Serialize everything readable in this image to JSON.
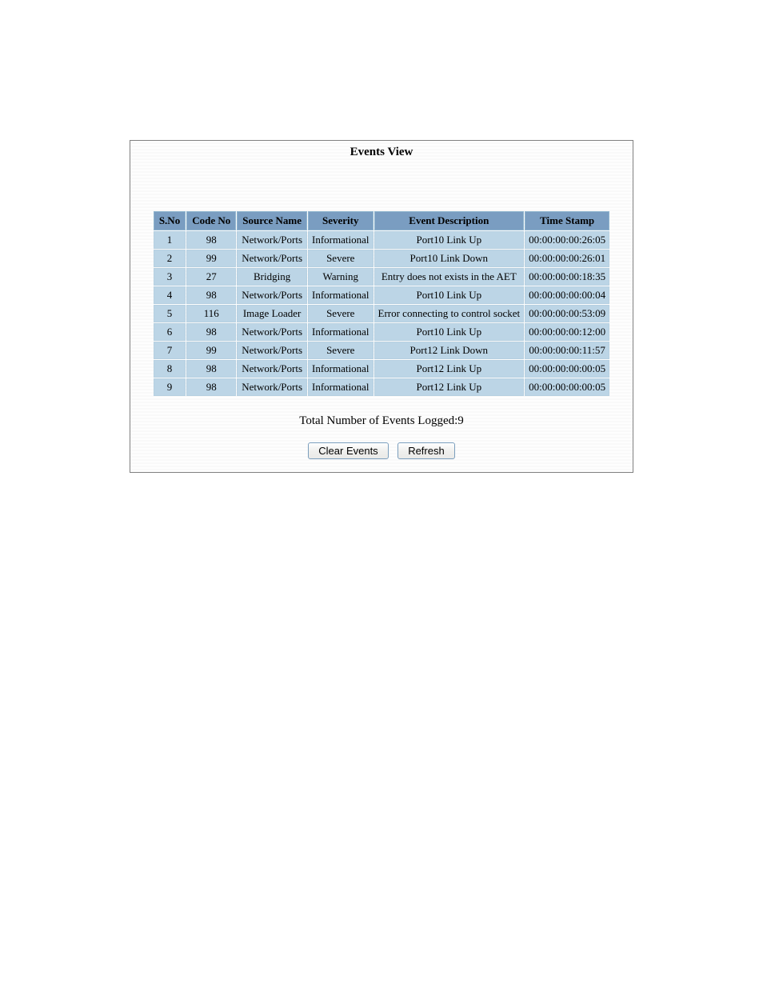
{
  "colors": {
    "header_bg": "#7a9dc1",
    "row_bg": "#bcd5e6",
    "panel_border": "#808080"
  },
  "title": "Events View",
  "columns": [
    "S.No",
    "Code No",
    "Source Name",
    "Severity",
    "Event Description",
    "Time Stamp"
  ],
  "rows": [
    {
      "sno": "1",
      "code": "98",
      "source": "Network/Ports",
      "severity": "Informational",
      "desc": "Port10 Link Up",
      "ts": "00:00:00:00:26:05"
    },
    {
      "sno": "2",
      "code": "99",
      "source": "Network/Ports",
      "severity": "Severe",
      "desc": "Port10 Link Down",
      "ts": "00:00:00:00:26:01"
    },
    {
      "sno": "3",
      "code": "27",
      "source": "Bridging",
      "severity": "Warning",
      "desc": "Entry does not exists in the AET",
      "ts": "00:00:00:00:18:35"
    },
    {
      "sno": "4",
      "code": "98",
      "source": "Network/Ports",
      "severity": "Informational",
      "desc": "Port10 Link Up",
      "ts": "00:00:00:00:00:04"
    },
    {
      "sno": "5",
      "code": "116",
      "source": "Image Loader",
      "severity": "Severe",
      "desc": "Error connecting to control socket",
      "ts": "00:00:00:00:53:09"
    },
    {
      "sno": "6",
      "code": "98",
      "source": "Network/Ports",
      "severity": "Informational",
      "desc": "Port10 Link Up",
      "ts": "00:00:00:00:12:00"
    },
    {
      "sno": "7",
      "code": "99",
      "source": "Network/Ports",
      "severity": "Severe",
      "desc": "Port12 Link Down",
      "ts": "00:00:00:00:11:57"
    },
    {
      "sno": "8",
      "code": "98",
      "source": "Network/Ports",
      "severity": "Informational",
      "desc": "Port12 Link Up",
      "ts": "00:00:00:00:00:05"
    },
    {
      "sno": "9",
      "code": "98",
      "source": "Network/Ports",
      "severity": "Informational",
      "desc": "Port12 Link Up",
      "ts": "00:00:00:00:00:05"
    }
  ],
  "footer_text": "Total Number of Events Logged:9",
  "buttons": {
    "clear": "Clear Events",
    "refresh": "Refresh"
  }
}
